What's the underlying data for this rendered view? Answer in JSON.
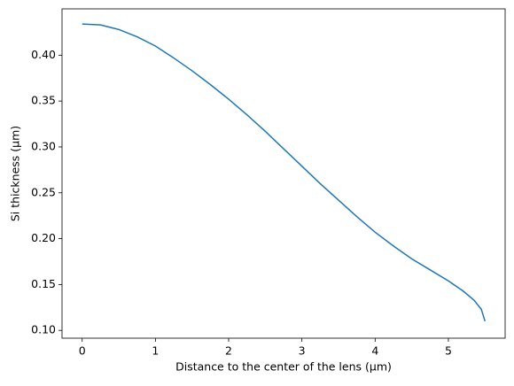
{
  "chart_data": {
    "type": "line",
    "xlabel": "Distance to the center of the lens (μm)",
    "ylabel": "Si thickness (μm)",
    "x": [
      0,
      0.25,
      0.5,
      0.75,
      1,
      1.25,
      1.5,
      1.75,
      2,
      2.25,
      2.5,
      2.75,
      3,
      3.25,
      3.5,
      3.75,
      4,
      4.25,
      4.5,
      4.75,
      5,
      5.2,
      5.35,
      5.45,
      5.5
    ],
    "series": [
      {
        "color": "#1f77b4",
        "values": [
          0.434,
          0.433,
          0.428,
          0.42,
          0.41,
          0.397,
          0.383,
          0.368,
          0.352,
          0.335,
          0.317,
          0.298,
          0.279,
          0.26,
          0.242,
          0.224,
          0.207,
          0.192,
          0.178,
          0.166,
          0.154,
          0.143,
          0.133,
          0.123,
          0.11
        ]
      }
    ],
    "xlim": [
      -0.275,
      5.775
    ],
    "ylim": [
      0.0915,
      0.4505
    ],
    "xticks": [
      0,
      1,
      2,
      3,
      4,
      5
    ],
    "yticks": [
      {
        "value": 0.1,
        "label": "0.10"
      },
      0.15,
      {
        "value": 0.2,
        "label": "0.20"
      },
      0.25,
      {
        "value": 0.3,
        "label": "0.30"
      },
      0.35,
      {
        "value": 0.4,
        "label": "0.40"
      }
    ]
  }
}
